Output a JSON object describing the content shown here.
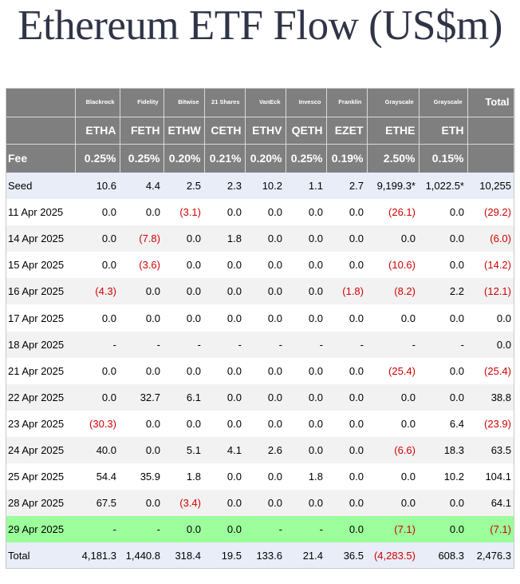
{
  "title": "Ethereum ETF Flow (US$m)",
  "colors": {
    "header_bg": "#7f7f7f",
    "negative": "#d00000",
    "highlight_row": "#9cff9c",
    "band_row": "#f2f2f2",
    "summary_row": "#e8edf8"
  },
  "chart_data": {
    "type": "table",
    "columns": [
      {
        "issuer": "Blackrock",
        "ticker": "ETHA",
        "fee": "0.25%"
      },
      {
        "issuer": "Fidelity",
        "ticker": "FETH",
        "fee": "0.25%"
      },
      {
        "issuer": "Bitwise",
        "ticker": "ETHW",
        "fee": "0.20%"
      },
      {
        "issuer": "21 Shares",
        "ticker": "CETH",
        "fee": "0.21%"
      },
      {
        "issuer": "VanEck",
        "ticker": "ETHV",
        "fee": "0.20%"
      },
      {
        "issuer": "Invesco",
        "ticker": "QETH",
        "fee": "0.25%"
      },
      {
        "issuer": "Franklin",
        "ticker": "EZET",
        "fee": "0.19%"
      },
      {
        "issuer": "Grayscale",
        "ticker": "ETHE",
        "fee": "2.50%"
      },
      {
        "issuer": "Grayscale",
        "ticker": "ETH",
        "fee": "0.15%"
      }
    ],
    "total_header": "Total",
    "fee_label": "Fee",
    "rows": [
      {
        "label": "Seed",
        "cells": [
          "10.6",
          "4.4",
          "2.5",
          "2.3",
          "10.2",
          "1.1",
          "2.7",
          "9,199.3*",
          "1,022.5*"
        ],
        "total": "10,255",
        "style": "seed"
      },
      {
        "label": "11 Apr 2025",
        "cells": [
          "0.0",
          "0.0",
          "(3.1)",
          "0.0",
          "0.0",
          "0.0",
          "0.0",
          "(26.1)",
          "0.0"
        ],
        "total": "(29.2)",
        "style": "plain"
      },
      {
        "label": "14 Apr 2025",
        "cells": [
          "0.0",
          "(7.8)",
          "0.0",
          "1.8",
          "0.0",
          "0.0",
          "0.0",
          "0.0",
          "0.0"
        ],
        "total": "(6.0)",
        "style": "band"
      },
      {
        "label": "15 Apr 2025",
        "cells": [
          "0.0",
          "(3.6)",
          "0.0",
          "0.0",
          "0.0",
          "0.0",
          "0.0",
          "(10.6)",
          "0.0"
        ],
        "total": "(14.2)",
        "style": "plain"
      },
      {
        "label": "16 Apr 2025",
        "cells": [
          "(4.3)",
          "0.0",
          "0.0",
          "0.0",
          "0.0",
          "0.0",
          "(1.8)",
          "(8.2)",
          "2.2"
        ],
        "total": "(12.1)",
        "style": "band"
      },
      {
        "label": "17 Apr 2025",
        "cells": [
          "0.0",
          "0.0",
          "0.0",
          "0.0",
          "0.0",
          "0.0",
          "0.0",
          "0.0",
          "0.0"
        ],
        "total": "0.0",
        "style": "plain"
      },
      {
        "label": "18 Apr 2025",
        "cells": [
          "-",
          "-",
          "-",
          "-",
          "-",
          "-",
          "-",
          "-",
          "-"
        ],
        "total": "0.0",
        "style": "band"
      },
      {
        "label": "21 Apr 2025",
        "cells": [
          "0.0",
          "0.0",
          "0.0",
          "0.0",
          "0.0",
          "0.0",
          "0.0",
          "(25.4)",
          "0.0"
        ],
        "total": "(25.4)",
        "style": "plain"
      },
      {
        "label": "22 Apr 2025",
        "cells": [
          "0.0",
          "32.7",
          "6.1",
          "0.0",
          "0.0",
          "0.0",
          "0.0",
          "0.0",
          "0.0"
        ],
        "total": "38.8",
        "style": "band"
      },
      {
        "label": "23 Apr 2025",
        "cells": [
          "(30.3)",
          "0.0",
          "0.0",
          "0.0",
          "0.0",
          "0.0",
          "0.0",
          "0.0",
          "6.4"
        ],
        "total": "(23.9)",
        "style": "plain"
      },
      {
        "label": "24 Apr 2025",
        "cells": [
          "40.0",
          "0.0",
          "5.1",
          "4.1",
          "2.6",
          "0.0",
          "0.0",
          "(6.6)",
          "18.3"
        ],
        "total": "63.5",
        "style": "band"
      },
      {
        "label": "25 Apr 2025",
        "cells": [
          "54.4",
          "35.9",
          "1.8",
          "0.0",
          "0.0",
          "1.8",
          "0.0",
          "0.0",
          "10.2"
        ],
        "total": "104.1",
        "style": "plain"
      },
      {
        "label": "28 Apr 2025",
        "cells": [
          "67.5",
          "0.0",
          "(3.4)",
          "0.0",
          "0.0",
          "0.0",
          "0.0",
          "0.0",
          "0.0"
        ],
        "total": "64.1",
        "style": "band"
      },
      {
        "label": "29 Apr 2025",
        "cells": [
          "-",
          "-",
          "0.0",
          "0.0",
          "-",
          "-",
          "0.0",
          "(7.1)",
          "0.0"
        ],
        "total": "(7.1)",
        "style": "highlight"
      },
      {
        "label": "Total",
        "cells": [
          "4,181.3",
          "1,440.8",
          "318.4",
          "19.5",
          "133.6",
          "21.4",
          "36.5",
          "(4,283.5)",
          "608.3"
        ],
        "total": "2,476.3",
        "style": "total"
      }
    ]
  }
}
